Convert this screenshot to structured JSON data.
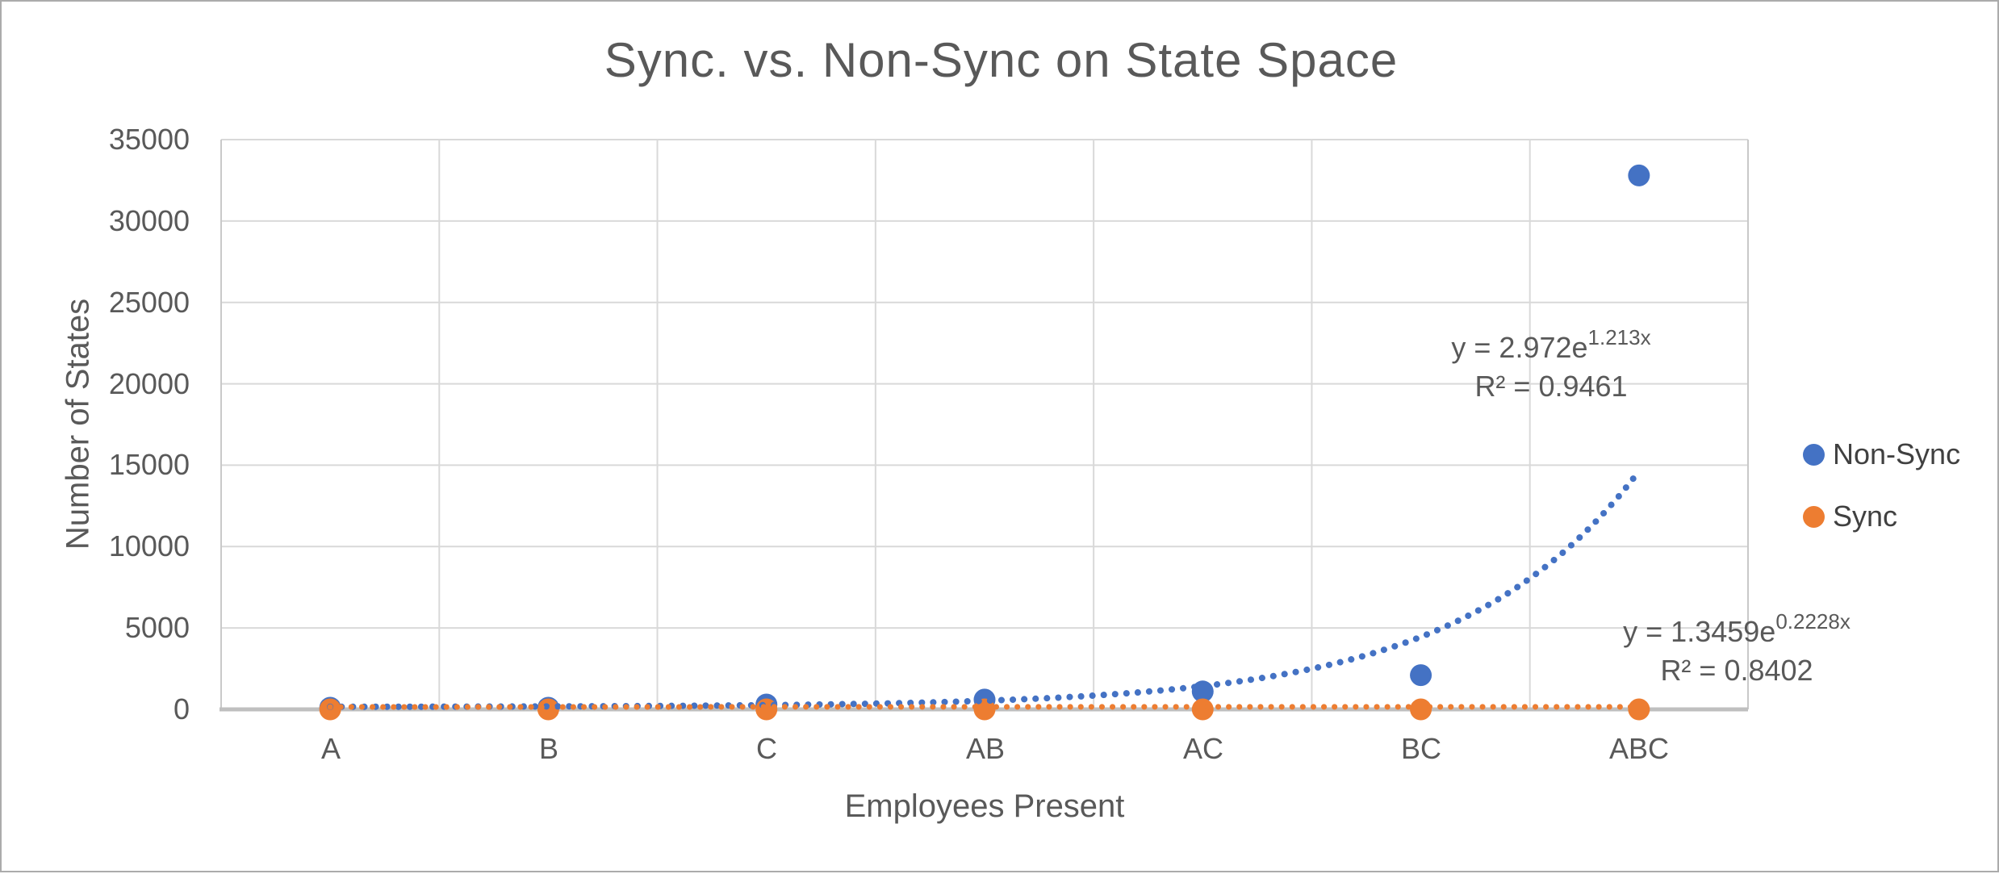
{
  "title": "Sync. vs. Non-Sync on  State Space",
  "chart_data": {
    "type": "scatter",
    "title": "Sync. vs. Non-Sync on  State Space",
    "xlabel": "Employees Present",
    "ylabel": "Number of States",
    "categories": [
      "A",
      "B",
      "C",
      "AB",
      "AC",
      "BC",
      "ABC"
    ],
    "series": [
      {
        "name": "Non-Sync",
        "color": "#4472C4",
        "values": [
          100,
          100,
          300,
          600,
          1100,
          2100,
          32800
        ]
      },
      {
        "name": "Sync",
        "color": "#ED7D31",
        "values": [
          0,
          0,
          0,
          0,
          0,
          0,
          0
        ]
      }
    ],
    "trendlines": [
      {
        "series": "Non-Sync",
        "type": "exponential",
        "a": 2.972,
        "b": 1.213,
        "equation_prefix": "y = 2.972e",
        "equation_exponent": "1.213x",
        "r_squared": 0.9461,
        "r_squared_label": "R² = 0.9461",
        "color": "#4472C4",
        "style": "dotted"
      },
      {
        "series": "Sync",
        "type": "exponential",
        "a": 1.3459,
        "b": 0.2228,
        "equation_prefix": "y = 1.3459e",
        "equation_exponent": "0.2228x",
        "r_squared": 0.8402,
        "r_squared_label": "R² = 0.8402",
        "color": "#ED7D31",
        "style": "dotted"
      }
    ],
    "ylim": [
      0,
      35000
    ],
    "y_ticks": [
      0,
      5000,
      10000,
      15000,
      20000,
      25000,
      30000,
      35000
    ],
    "y_tick_labels": [
      "0",
      "5000",
      "10000",
      "15000",
      "20000",
      "25000",
      "30000",
      "35000"
    ],
    "grid": true,
    "legend_position": "right"
  },
  "legend": {
    "items": [
      {
        "label": "Non-Sync",
        "color": "#4472C4"
      },
      {
        "label": "Sync",
        "color": "#ED7D31"
      }
    ]
  },
  "colors": {
    "series_blue": "#4472C4",
    "series_orange": "#ED7D31",
    "text_gray": "#595959",
    "legend_text": "#404040",
    "gridline": "#D9D9D9",
    "plot_border": "#C9C9C9",
    "axis_line": "#BFBFBF",
    "image_border": "#ABABAB",
    "background": "#FFFFFF"
  }
}
